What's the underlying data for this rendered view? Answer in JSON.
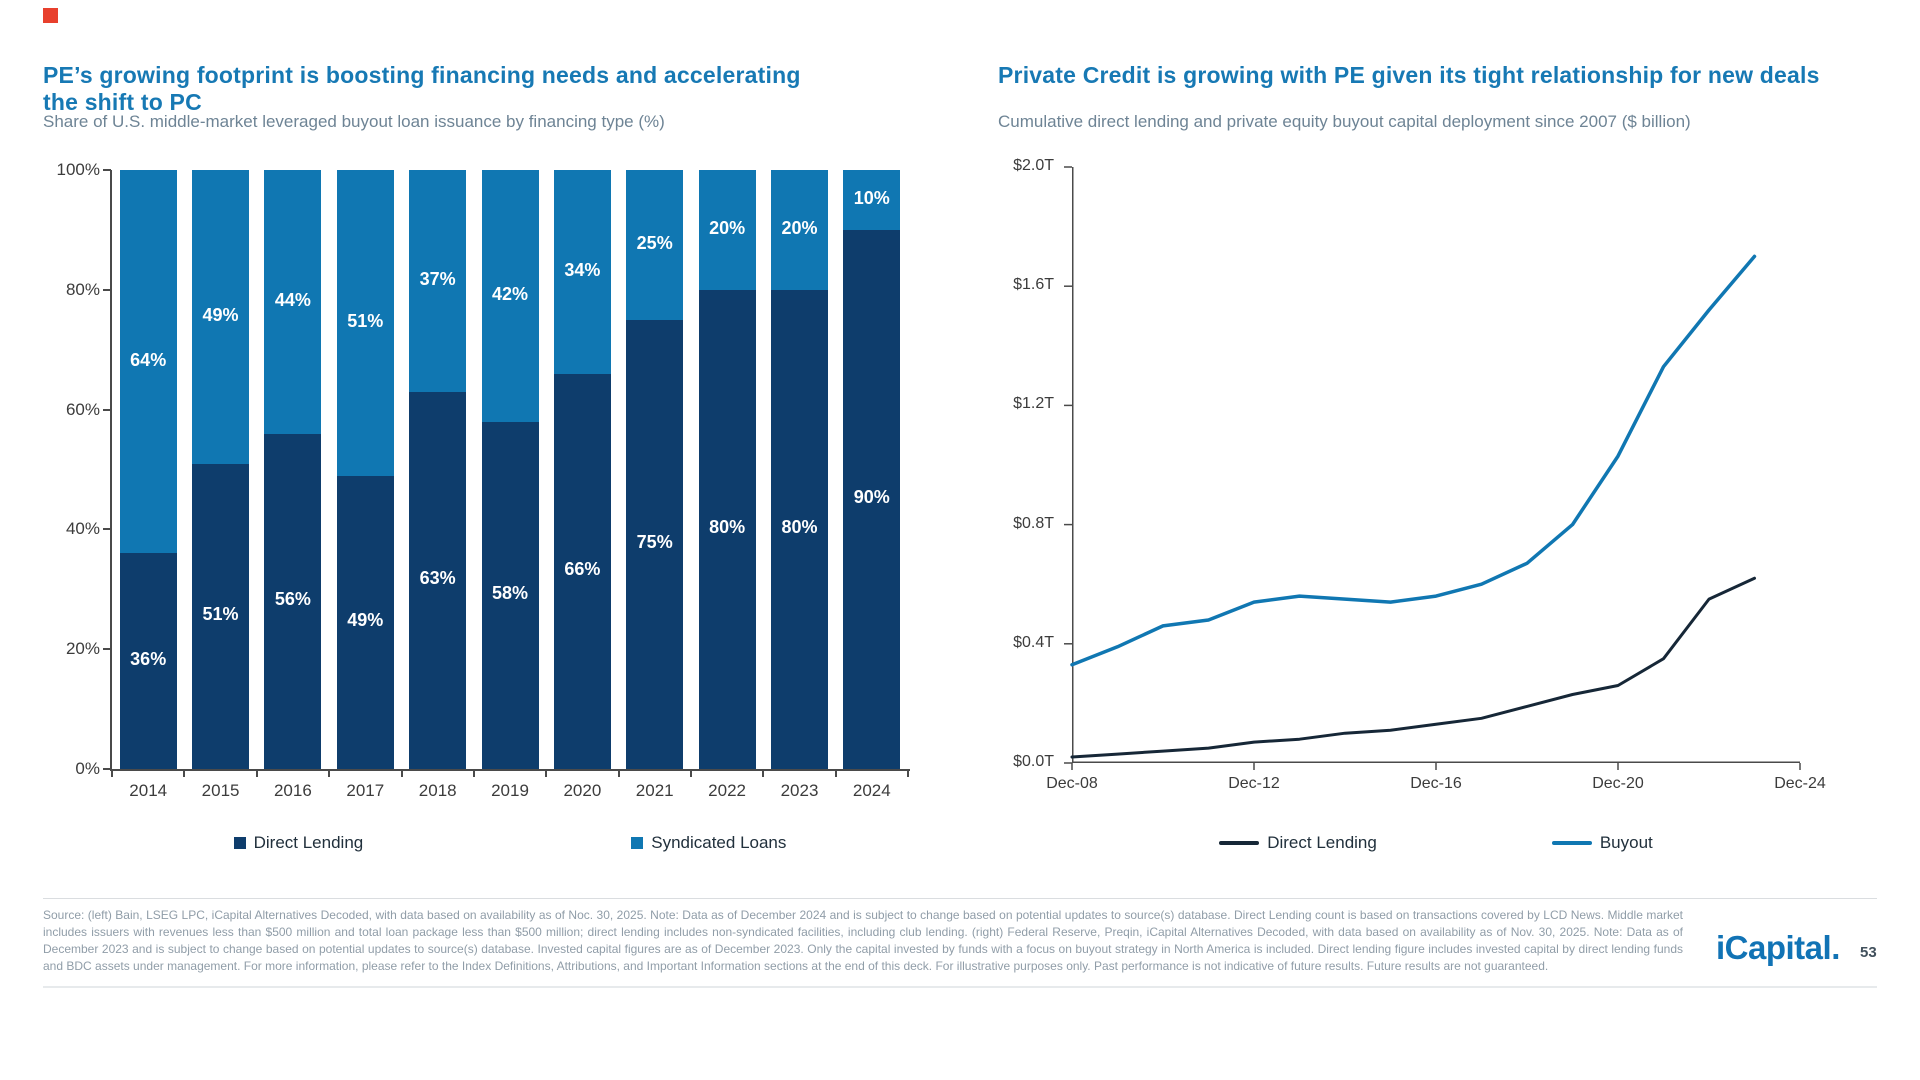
{
  "slide": {
    "logo_text": "iCapital.",
    "page_number": "53",
    "source_text": "Source: (left) Bain, LSEG LPC, iCapital Alternatives Decoded, with data based on availability as of Noc. 30, 2025. Note: Data as of December 2024 and is subject to change based on potential updates to source(s) database. Direct Lending count is based on transactions covered by LCD News. Middle market includes issuers with revenues less than $500 million and total loan package less than $500 million; direct lending includes non-syndicated facilities, including club lending. (right) Federal Reserve, Preqin, iCapital Alternatives Decoded, with data based on availability as of Nov. 30, 2025. Note: Data as of December 2023 and is subject to change based on potential updates to source(s) database. Invested capital figures are as of December 2023. Only the capital invested by funds with a focus on buyout strategy in North America is included. Direct lending figure includes invested capital by direct lending funds and BDC assets under management. For more information, please refer to the Index Definitions, Attributions, and Important Information sections at the end of this deck. For illustrative purposes only. Past performance is not indicative of future results. Future results are not guaranteed."
  },
  "colors": {
    "title_blue": "#1779b4",
    "subtitle_gray": "#6e8495",
    "navy": "#0e3d6c",
    "light_blue": "#1077b2",
    "dark_line": "#162737",
    "axis_gray": "#4a4a4a",
    "brand_red": "#e8402d",
    "logo_blue": "#1173b5"
  },
  "chart_data": [
    {
      "id": "lbo-loan-issuance-share",
      "type": "bar",
      "stacked": true,
      "title": "PE’s growing footprint is boosting financing needs and accelerating the shift to PC",
      "subtitle": "Share of U.S. middle-market leveraged buyout loan issuance by financing type (%)",
      "categories": [
        "2014",
        "2015",
        "2016",
        "2017",
        "2018",
        "2019",
        "2020",
        "2021",
        "2022",
        "2023",
        "2024"
      ],
      "series": [
        {
          "name": "Direct Lending",
          "color": "#0e3d6c",
          "values": [
            36,
            51,
            56,
            49,
            63,
            58,
            66,
            75,
            80,
            80,
            90
          ]
        },
        {
          "name": "Syndicated Loans",
          "color": "#1077b2",
          "values": [
            64,
            49,
            44,
            51,
            37,
            42,
            34,
            25,
            20,
            20,
            10
          ]
        }
      ],
      "ylim": [
        0,
        100
      ],
      "yticks": [
        "0%",
        "20%",
        "40%",
        "60%",
        "80%",
        "100%"
      ],
      "data_labels": "percent",
      "grid": false,
      "legend_position": "bottom"
    },
    {
      "id": "cumulative-capital-deployment",
      "type": "line",
      "title": "Private Credit is growing with PE given its tight relationship for new deals",
      "subtitle": "Cumulative direct lending and private equity buyout capital deployment since 2007 ($ billion)",
      "x_years": [
        2008,
        2009,
        2010,
        2011,
        2012,
        2013,
        2014,
        2015,
        2016,
        2017,
        2018,
        2019,
        2020,
        2021,
        2022,
        2023
      ],
      "x_range": [
        2008,
        2024
      ],
      "xticks": [
        "Dec-08",
        "Dec-12",
        "Dec-16",
        "Dec-20",
        "Dec-24"
      ],
      "series": [
        {
          "name": "Direct Lending",
          "color": "#162737",
          "values": [
            0.02,
            0.03,
            0.04,
            0.05,
            0.07,
            0.08,
            0.1,
            0.11,
            0.13,
            0.15,
            0.19,
            0.23,
            0.26,
            0.35,
            0.55,
            0.62
          ]
        },
        {
          "name": "Buyout",
          "color": "#1077b2",
          "values": [
            0.33,
            0.39,
            0.46,
            0.48,
            0.54,
            0.56,
            0.55,
            0.54,
            0.56,
            0.6,
            0.67,
            0.8,
            1.03,
            1.33,
            1.52,
            1.7
          ]
        }
      ],
      "ylim": [
        0,
        2.0
      ],
      "yticks": [
        "$0.0T",
        "$0.4T",
        "$0.8T",
        "$1.2T",
        "$1.6T",
        "$2.0T"
      ],
      "grid": false,
      "legend_position": "bottom"
    }
  ]
}
